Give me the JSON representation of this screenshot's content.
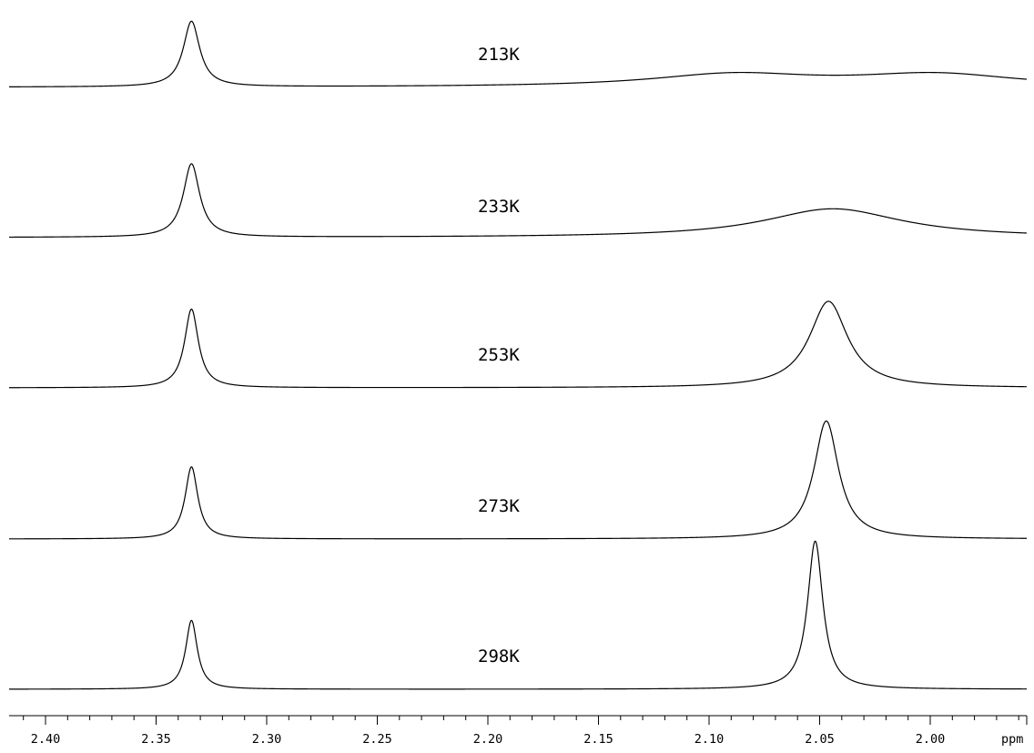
{
  "chart_data": {
    "type": "line",
    "title": "",
    "xlabel": "ppm",
    "ylabel": "",
    "x_axis": {
      "range": [
        2.43,
        1.96
      ],
      "reversed": true,
      "major_ticks": [
        2.4,
        2.35,
        2.3,
        2.25,
        2.2,
        2.15,
        2.1,
        2.05,
        2.0
      ],
      "tick_labels": [
        "2.40",
        "2.35",
        "2.30",
        "2.25",
        "2.20",
        "2.15",
        "2.10",
        "2.05",
        "2.00"
      ],
      "minor_tick_step": 0.01,
      "unit_label": "ppm"
    },
    "grid": false,
    "legend": "none",
    "line_color": "#000000",
    "series": [
      {
        "name": "213K",
        "peaks": [
          {
            "center": 2.334,
            "height": 1.0,
            "width": 0.0045
          },
          {
            "center": 2.089,
            "height": 0.19,
            "width": 0.045
          },
          {
            "center": 1.997,
            "height": 0.19,
            "width": 0.045
          }
        ]
      },
      {
        "name": "233K",
        "peaks": [
          {
            "center": 2.334,
            "height": 1.12,
            "width": 0.0045
          },
          {
            "center": 2.044,
            "height": 0.44,
            "width": 0.038
          }
        ]
      },
      {
        "name": "253K",
        "peaks": [
          {
            "center": 2.334,
            "height": 1.2,
            "width": 0.0038
          },
          {
            "center": 2.046,
            "height": 1.32,
            "width": 0.0105
          }
        ]
      },
      {
        "name": "273K",
        "peaks": [
          {
            "center": 2.334,
            "height": 1.1,
            "width": 0.0035
          },
          {
            "center": 2.047,
            "height": 1.8,
            "width": 0.0068
          }
        ]
      },
      {
        "name": "298K",
        "peaks": [
          {
            "center": 2.334,
            "height": 1.05,
            "width": 0.0032
          },
          {
            "center": 2.052,
            "height": 2.26,
            "width": 0.0042
          }
        ]
      }
    ]
  }
}
